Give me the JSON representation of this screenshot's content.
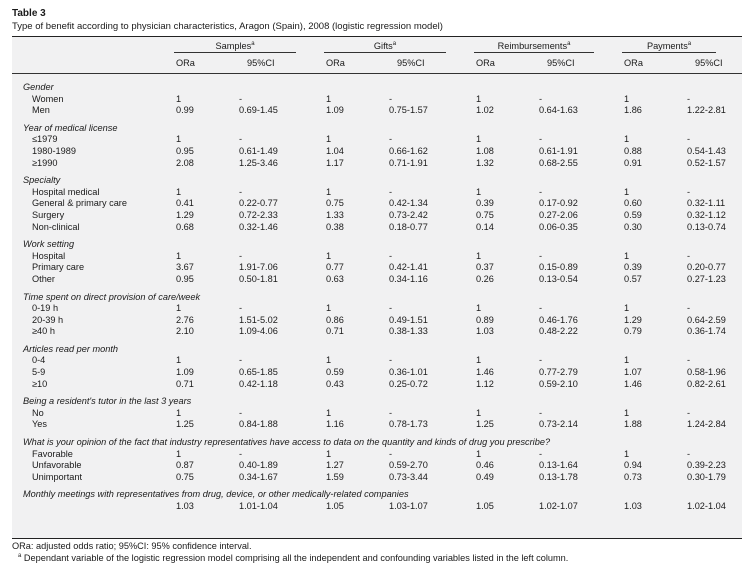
{
  "title": "Table 3",
  "caption": "Type of benefit according to physician characteristics, Aragon (Spain), 2008 (logistic regression model)",
  "columns": {
    "groups": [
      "Samples",
      "Gifts",
      "Reimbursements",
      "Payments"
    ],
    "group_marker": "a",
    "sub": [
      "ORa",
      "95%CI"
    ]
  },
  "groups": [
    {
      "label": "Gender",
      "rows": [
        {
          "label": "Women",
          "values": [
            "1",
            "-",
            "1",
            "-",
            "1",
            "-",
            "1",
            "-"
          ]
        },
        {
          "label": "Men",
          "values": [
            "0.99",
            "0.69-1.45",
            "1.09",
            "0.75-1.57",
            "1.02",
            "0.64-1.63",
            "1.86",
            "1.22-2.81"
          ]
        }
      ]
    },
    {
      "label": "Year of medical license",
      "rows": [
        {
          "label": "≤1979",
          "values": [
            "1",
            "-",
            "1",
            "-",
            "1",
            "-",
            "1",
            "-"
          ]
        },
        {
          "label": "1980-1989",
          "values": [
            "0.95",
            "0.61-1.49",
            "1.04",
            "0.66-1.62",
            "1.08",
            "0.61-1.91",
            "0.88",
            "0.54-1.43"
          ]
        },
        {
          "label": "≥1990",
          "values": [
            "2.08",
            "1.25-3.46",
            "1.17",
            "0.71-1.91",
            "1.32",
            "0.68-2.55",
            "0.91",
            "0.52-1.57"
          ]
        }
      ]
    },
    {
      "label": "Specialty",
      "rows": [
        {
          "label": "Hospital medical",
          "values": [
            "1",
            "-",
            "1",
            "-",
            "1",
            "-",
            "1",
            "-"
          ]
        },
        {
          "label": "General & primary care",
          "values": [
            "0.41",
            "0.22-0.77",
            "0.75",
            "0.42-1.34",
            "0.39",
            "0.17-0.92",
            "0.60",
            "0.32-1.11"
          ]
        },
        {
          "label": "Surgery",
          "values": [
            "1.29",
            "0.72-2.33",
            "1.33",
            "0.73-2.42",
            "0.75",
            "0.27-2.06",
            "0.59",
            "0.32-1.12"
          ]
        },
        {
          "label": "Non-clinical",
          "values": [
            "0.68",
            "0.32-1.46",
            "0.38",
            "0.18-0.77",
            "0.14",
            "0.06-0.35",
            "0.30",
            "0.13-0.74"
          ]
        }
      ]
    },
    {
      "label": "Work setting",
      "rows": [
        {
          "label": "Hospital",
          "values": [
            "1",
            "-",
            "1",
            "-",
            "1",
            "-",
            "1",
            "-"
          ]
        },
        {
          "label": "Primary care",
          "values": [
            "3.67",
            "1.91-7.06",
            "0.77",
            "0.42-1.41",
            "0.37",
            "0.15-0.89",
            "0.39",
            "0.20-0.77"
          ]
        },
        {
          "label": "Other",
          "values": [
            "0.95",
            "0.50-1.81",
            "0.63",
            "0.34-1.16",
            "0.26",
            "0.13-0.54",
            "0.57",
            "0.27-1.23"
          ]
        }
      ]
    },
    {
      "label": "Time spent on direct provision of care/week",
      "rows": [
        {
          "label": "0-19 h",
          "values": [
            "1",
            "-",
            "1",
            "-",
            "1",
            "-",
            "1",
            "-"
          ]
        },
        {
          "label": "20-39 h",
          "values": [
            "2.76",
            "1.51-5.02",
            "0.86",
            "0.49-1.51",
            "0.89",
            "0.46-1.76",
            "1.29",
            "0.64-2.59"
          ]
        },
        {
          "label": "≥40 h",
          "values": [
            "2.10",
            "1.09-4.06",
            "0.71",
            "0.38-1.33",
            "1.03",
            "0.48-2.22",
            "0.79",
            "0.36-1.74"
          ]
        }
      ]
    },
    {
      "label": "Articles read per month",
      "rows": [
        {
          "label": "0-4",
          "values": [
            "1",
            "-",
            "1",
            "-",
            "1",
            "-",
            "1",
            "-"
          ]
        },
        {
          "label": "5-9",
          "values": [
            "1.09",
            "0.65-1.85",
            "0.59",
            "0.36-1.01",
            "1.46",
            "0.77-2.79",
            "1.07",
            "0.58-1.96"
          ]
        },
        {
          "label": "≥10",
          "values": [
            "0.71",
            "0.42-1.18",
            "0.43",
            "0.25-0.72",
            "1.12",
            "0.59-2.10",
            "1.46",
            "0.82-2.61"
          ]
        }
      ]
    },
    {
      "label": "Being a resident's tutor in the last 3 years",
      "rows": [
        {
          "label": "No",
          "values": [
            "1",
            "-",
            "1",
            "-",
            "1",
            "-",
            "1",
            "-"
          ]
        },
        {
          "label": "Yes",
          "values": [
            "1.25",
            "0.84-1.88",
            "1.16",
            "0.78-1.73",
            "1.25",
            "0.73-2.14",
            "1.88",
            "1.24-2.84"
          ]
        }
      ]
    },
    {
      "label": "What is your opinion of the fact that industry representatives have access to data on the quantity and kinds of drug you prescribe?",
      "rows": [
        {
          "label": "Favorable",
          "values": [
            "1",
            "-",
            "1",
            "-",
            "1",
            "-",
            "1",
            "-"
          ]
        },
        {
          "label": "Unfavorable",
          "values": [
            "0.87",
            "0.40-1.89",
            "1.27",
            "0.59-2.70",
            "0.46",
            "0.13-1.64",
            "0.94",
            "0.39-2.23"
          ]
        },
        {
          "label": "Unimportant",
          "values": [
            "0.75",
            "0.34-1.67",
            "1.59",
            "0.73-3.44",
            "0.49",
            "0.13-1.78",
            "0.73",
            "0.30-1.79"
          ]
        }
      ]
    },
    {
      "label": "Monthly meetings with representatives from drug, device, or other medically-related companies",
      "rows": [
        {
          "label": "",
          "values": [
            "1.03",
            "1.01-1.04",
            "1.05",
            "1.03-1.07",
            "1.05",
            "1.02-1.07",
            "1.03",
            "1.02-1.04"
          ]
        }
      ]
    }
  ],
  "footnotes": {
    "abbreviations": "ORa: adjusted odds ratio; 95%CI: 95% confidence interval.",
    "marker": "a",
    "note": "Dependant variable of the logistic regression model comprising all the independent and confounding variables listed in the left column."
  }
}
